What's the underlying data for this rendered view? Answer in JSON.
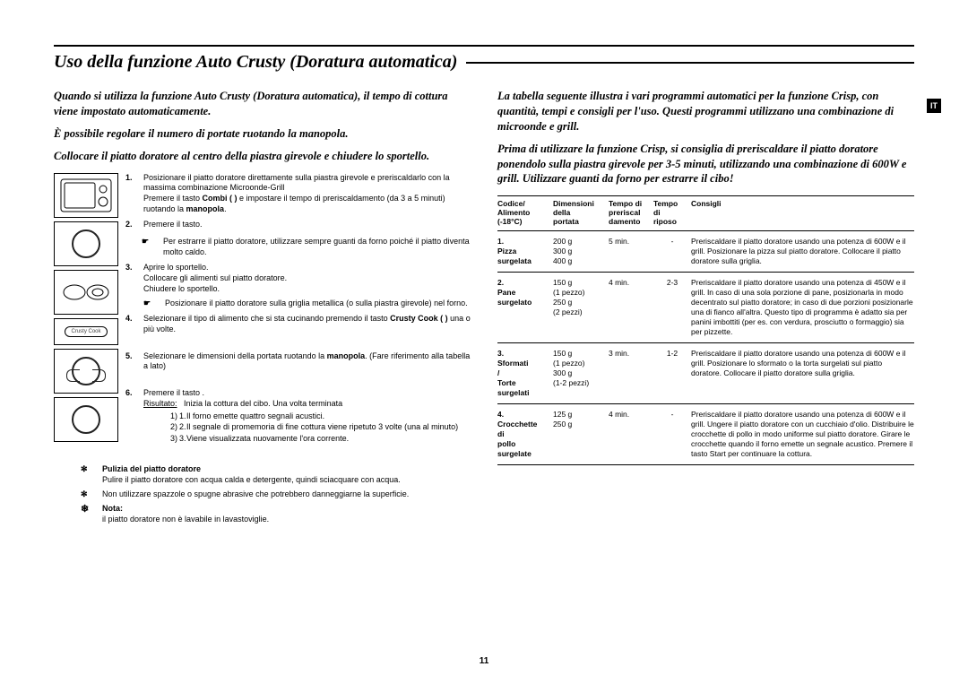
{
  "lang_badge": "IT",
  "page_number": "11",
  "title": "Uso della funzione Auto Crusty (Doratura automatica)",
  "left": {
    "intro1": "Quando si utilizza la funzione Auto Crusty (Doratura automatica), il tempo di cottura viene impostato automaticamente.",
    "intro2": "È possibile regolare il numero di portate ruotando la manopola.",
    "intro3": "Collocare il piatto doratore al centro della piastra girevole e chiudere lo sportello.",
    "step1a": "Posizionare il piatto doratore direttamente sulla piastra girevole e preriscaldarlo con la massima combinazione Microonde-Grill",
    "step1b1": "Premere il tasto ",
    "step1b2": "Combi (         )",
    "step1b3": " e impostare il tempo di preriscaldamento (da 3 a 5 minuti) ruotando la ",
    "step1b4": "manopola",
    "step1b5": ".",
    "step2": "Premere il      tasto.",
    "step2_note": "Per estrarre il piatto doratore, utilizzare sempre guanti da forno poiché il piatto diventa molto caldo.",
    "step3a": "Aprire lo sportello.",
    "step3b": "Collocare gli alimenti sul piatto doratore.",
    "step3c": "Chiudere lo sportello.",
    "step3d": "Posizionare il piatto doratore sulla griglia metallica (o sulla piastra girevole) nel forno.",
    "step4a": "Selezionare il tipo di alimento che si sta cucinando premendo il tasto ",
    "step4b": "Crusty Cook (        )",
    "step4c": " una o più volte.",
    "step5a": "Selezionare le dimensioni della portata ruotando la ",
    "step5b": "manopola",
    "step5c": ". (Fare riferimento alla tabella a lato)",
    "step6a": "Premere il tasto      .",
    "step6_res_label": "Risultato:",
    "step6_res": "Inizia la cottura del cibo. Una volta terminata",
    "step6_1": "Il forno emette quattro segnali acustici.",
    "step6_2": "Il segnale di promemoria di fine cottura viene ripetuto 3 volte (una al minuto)",
    "step6_3": "Viene visualizzata nuovamente l'ora corrente.",
    "clean_h": "Pulizia del piatto doratore",
    "clean_t": "Pulire il piatto doratore con acqua calda e detergente, quindi sciacquare con acqua.",
    "clean_w": "Non utilizzare spazzole o spugne abrasive che potrebbero danneggiarne la superficie.",
    "nota_h": "Nota:",
    "nota_t": "il piatto doratore non è lavabile in lavastoviglie."
  },
  "right": {
    "intro1": "La tabella seguente illustra i vari programmi automatici per la funzione Crisp, con quantità, tempi e consigli per l'uso. Questi programmi utilizzano una combinazione di microonde e grill.",
    "intro2": "Prima di utilizzare la funzione Crisp, si consiglia di preriscaldare il piatto doratore ponendolo sulla piastra girevole per 3-5 minuti, utilizzando una combinazione di 600W e grill. Utilizzare guanti da forno per estrarre il cibo!",
    "headers": {
      "c1a": "Codice/",
      "c1b": "Alimento",
      "c1c": "(-18°C)",
      "c2a": "Dimensioni",
      "c2b": "della",
      "c2c": "portata",
      "c3a": "Tempo di",
      "c3b": "preriscal",
      "c3c": "damento",
      "c4a": "Tempo",
      "c4b": "di",
      "c4c": "riposo",
      "c5": "Consigli"
    },
    "rows": [
      {
        "code": "1.",
        "food": "Pizza surgelata",
        "dim": "200 g\n300 g\n400 g",
        "pre": "5 min.",
        "rest": "-",
        "tip": "Preriscaldare il piatto doratore usando una potenza di 600W e il grill. Posizionare la pizza sul piatto doratore. Collocare il piatto doratore sulla griglia."
      },
      {
        "code": "2.",
        "food": "Pane surgelato",
        "dim": "150 g\n(1 pezzo)\n250 g\n(2 pezzi)",
        "pre": "4 min.",
        "rest": "2-3",
        "tip": "Preriscaldare il piatto doratore usando una potenza di 450W e il grill. In caso di una sola porzione di pane, posizionarla in modo decentrato sul piatto doratore; in caso di due porzioni posizionarle una di fianco all'altra. Questo tipo di programma è adatto sia per panini imbottiti (per es. con verdura, prosciutto o formaggio) sia per pizzette."
      },
      {
        "code": "3.",
        "food": "Sformati / Torte surgelati",
        "dim": "150 g\n(1 pezzo)\n300 g\n(1-2 pezzi)",
        "pre": "3 min.",
        "rest": "1-2",
        "tip": "Preriscaldare il piatto doratore usando una potenza di 600W e il grill. Posizionare lo sformato o la torta surgelati sul piatto doratore. Collocare il piatto doratore sulla griglia."
      },
      {
        "code": "4.",
        "food": "Crocchette di pollo surgelate",
        "dim": "125 g\n250 g",
        "pre": "4 min.",
        "rest": "-",
        "tip": "Preriscaldare il piatto doratore usando una potenza di 600W e il grill. Ungere il piatto doratore con un cucchiaio d'olio. Distribuire le crocchette di pollo in modo uniforme sul piatto doratore. Girare le crocchette quando il forno emette un segnale acustico. Premere il tasto Start per continuare la cottura."
      }
    ]
  }
}
